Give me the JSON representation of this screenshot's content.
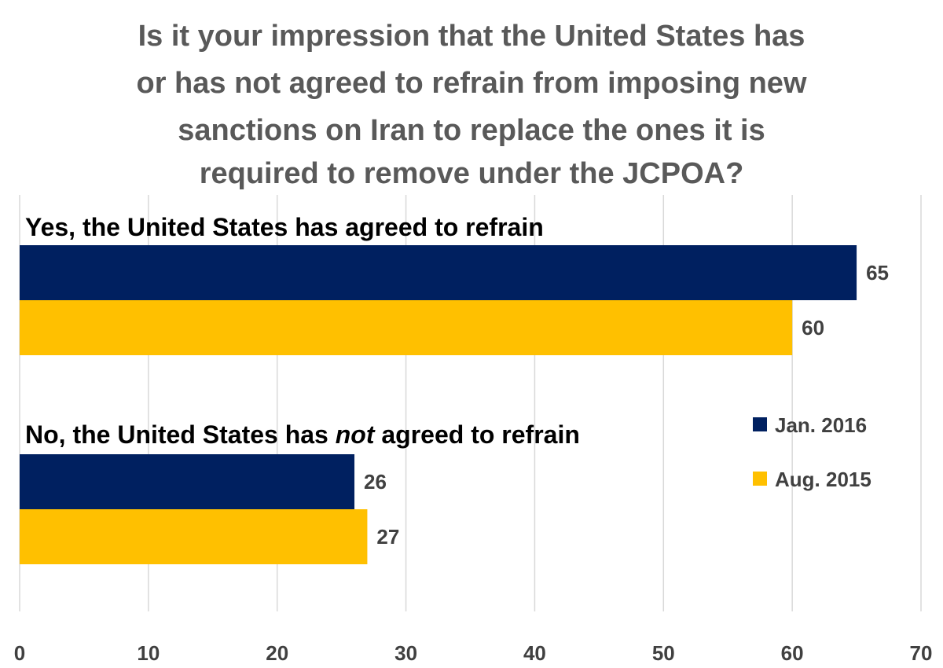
{
  "chart_data": {
    "type": "bar",
    "orientation": "horizontal",
    "title_lines": [
      "Is it your impression that the United States has",
      "or has not agreed to refrain from imposing new",
      "sanctions on Iran to replace the ones it is",
      "required to remove under the JCPOA?"
    ],
    "categories": [
      {
        "before": "Yes, the United States has agreed to refrain",
        "emph": "",
        "after": ""
      },
      {
        "before": "No, the United States has ",
        "emph": "not",
        "after": " agreed to refrain"
      }
    ],
    "series": [
      {
        "name": "Jan. 2016",
        "color": "#002060",
        "values": [
          65,
          26
        ]
      },
      {
        "name": "Aug. 2015",
        "color": "#FFC000",
        "values": [
          60,
          27
        ]
      }
    ],
    "xlim": [
      0,
      70
    ],
    "xticks": [
      0,
      10,
      20,
      30,
      40,
      50,
      60,
      70
    ],
    "grid": "vertical",
    "legend_position": "right"
  }
}
